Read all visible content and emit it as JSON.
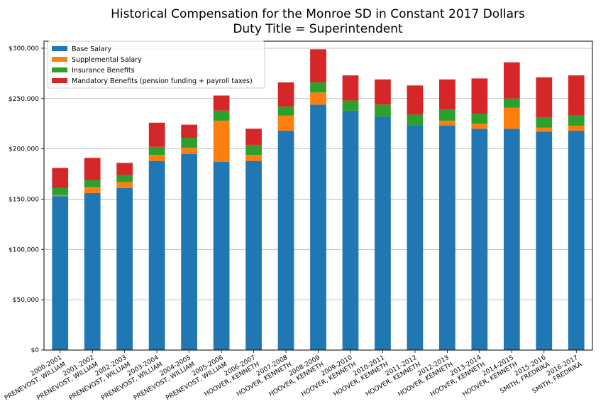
{
  "chart_data": {
    "type": "bar",
    "stacked": true,
    "title": "Historical Compensation for the Monroe SD in Constant 2017 Dollars",
    "subtitle": "Duty Title = Superintendent",
    "xlabel": "",
    "ylabel": "",
    "ylim": [
      0,
      307000
    ],
    "yticks": [
      0,
      50000,
      100000,
      150000,
      200000,
      250000,
      300000
    ],
    "ytick_labels": [
      "$0",
      "$50,000",
      "$100,000",
      "$150,000",
      "$200,000",
      "$250,000",
      "$300,000"
    ],
    "grid": "horizontal",
    "legend_position": "top-left",
    "categories": [
      [
        "2000-2001",
        "PRENEVOST, WILLIAM"
      ],
      [
        "2001-2002",
        "PRENEVOST, WILLIAM"
      ],
      [
        "2002-2003",
        "PRENEVOST, WILLIAM"
      ],
      [
        "2003-2004",
        "PRENEVOST, WILLIAM"
      ],
      [
        "2004-2005",
        "PRENEVOST, WILLIAM"
      ],
      [
        "2005-2006",
        "PRENEVOST, WILLIAM"
      ],
      [
        "2006-2007",
        "HOOVER, KENNETH"
      ],
      [
        "2007-2008",
        "HOOVER, KENNETH"
      ],
      [
        "2008-2009",
        "HOOVER, KENNETH"
      ],
      [
        "2009-2010",
        "HOOVER, KENNETH"
      ],
      [
        "2010-2011",
        "HOOVER, KENNETH"
      ],
      [
        "2011-2012",
        "HOOVER, KENNETH"
      ],
      [
        "2012-2013",
        "HOOVER, KENNETH"
      ],
      [
        "2013-2014",
        "HOOVER, KENNETH"
      ],
      [
        "2014-2015",
        "HOOVER, KENNETH"
      ],
      [
        "2015-2016",
        "SMITH, FREDRIKA"
      ],
      [
        "2016-2017",
        "SMITH, FREDRIKA"
      ]
    ],
    "series": [
      {
        "name": "Base Salary",
        "color": "#1f77b4",
        "values": [
          153000,
          156000,
          161000,
          188000,
          195000,
          187000,
          188000,
          218000,
          244000,
          238000,
          232000,
          223000,
          223000,
          220000,
          220000,
          217000,
          218000
        ]
      },
      {
        "name": "Supplemental Salary",
        "color": "#ff7f0e",
        "values": [
          1000,
          6000,
          6000,
          6000,
          6000,
          41000,
          6000,
          15000,
          12000,
          0,
          0,
          0,
          5000,
          5000,
          21000,
          4000,
          5000
        ]
      },
      {
        "name": "Insurance Benefits",
        "color": "#2ca02c",
        "values": [
          7000,
          7000,
          7000,
          8000,
          10000,
          10000,
          10000,
          9000,
          10000,
          10000,
          12000,
          11000,
          11000,
          10000,
          9000,
          10000,
          10000
        ]
      },
      {
        "name": "Mandatory Benefits (pension funding + payroll taxes)",
        "color": "#d62728",
        "values": [
          20000,
          22000,
          12000,
          24000,
          13000,
          15000,
          16000,
          24000,
          33000,
          25000,
          25000,
          29000,
          30000,
          35000,
          36000,
          40000,
          40000
        ]
      }
    ]
  }
}
